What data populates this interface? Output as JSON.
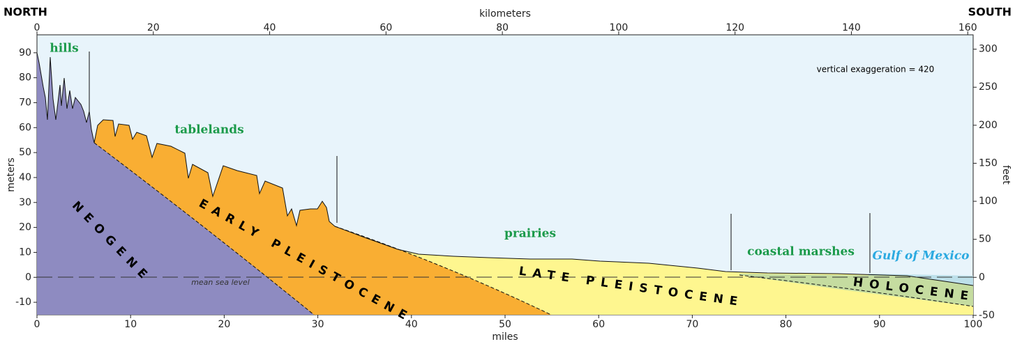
{
  "corners": {
    "left": "NORTH",
    "right": "SOUTH"
  },
  "axes": {
    "top": {
      "title": "kilometers",
      "lim": [
        0,
        160.93
      ],
      "ticks": [
        0,
        20,
        40,
        60,
        80,
        100,
        120,
        140,
        160
      ]
    },
    "bottom": {
      "title": "miles",
      "lim": [
        0,
        100
      ],
      "ticks": [
        0,
        10,
        20,
        30,
        40,
        50,
        60,
        70,
        80,
        90,
        100
      ]
    },
    "left": {
      "title": "meters",
      "lim": [
        -15,
        97.2
      ],
      "ticks": [
        -10,
        0,
        10,
        20,
        30,
        40,
        50,
        60,
        70,
        80,
        90
      ]
    },
    "right": {
      "title": "feet",
      "lim": [
        -49.2,
        318.9
      ],
      "ticks": [
        -50,
        0,
        50,
        100,
        150,
        200,
        250,
        300
      ]
    }
  },
  "landforms": [
    "hills",
    "tablelands",
    "prairies",
    "coastal marshes"
  ],
  "water": "Gulf of Mexico",
  "units": [
    "NEOGENE",
    "EARLY PLEISTOCENE",
    "LATE PLEISTOCENE",
    "HOLOCENE"
  ],
  "notes": {
    "exaggeration": "vertical exaggeration = 420",
    "sea_level": "mean sea level"
  }
}
